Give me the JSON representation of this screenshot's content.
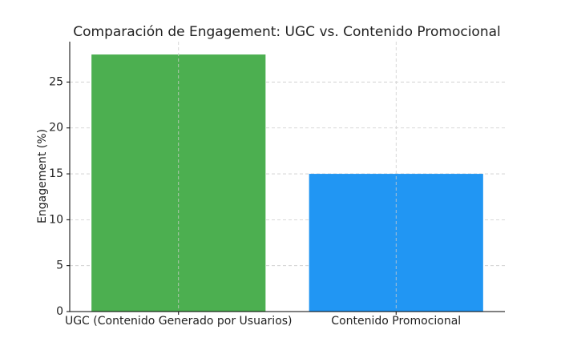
{
  "chart_data": {
    "type": "bar",
    "title": "Comparación de Engagement: UGC vs. Contenido Promocional",
    "y_label": "Engagement (%)",
    "categories": [
      "UGC (Contenido Generado por Usuarios)",
      "Contenido Promocional"
    ],
    "values": [
      28,
      15
    ],
    "colors": [
      "#4caf50",
      "#2196f3"
    ],
    "ylim": [
      0,
      29.4
    ],
    "yticks": [
      0,
      5,
      10,
      15,
      20,
      25
    ],
    "grid": true
  }
}
